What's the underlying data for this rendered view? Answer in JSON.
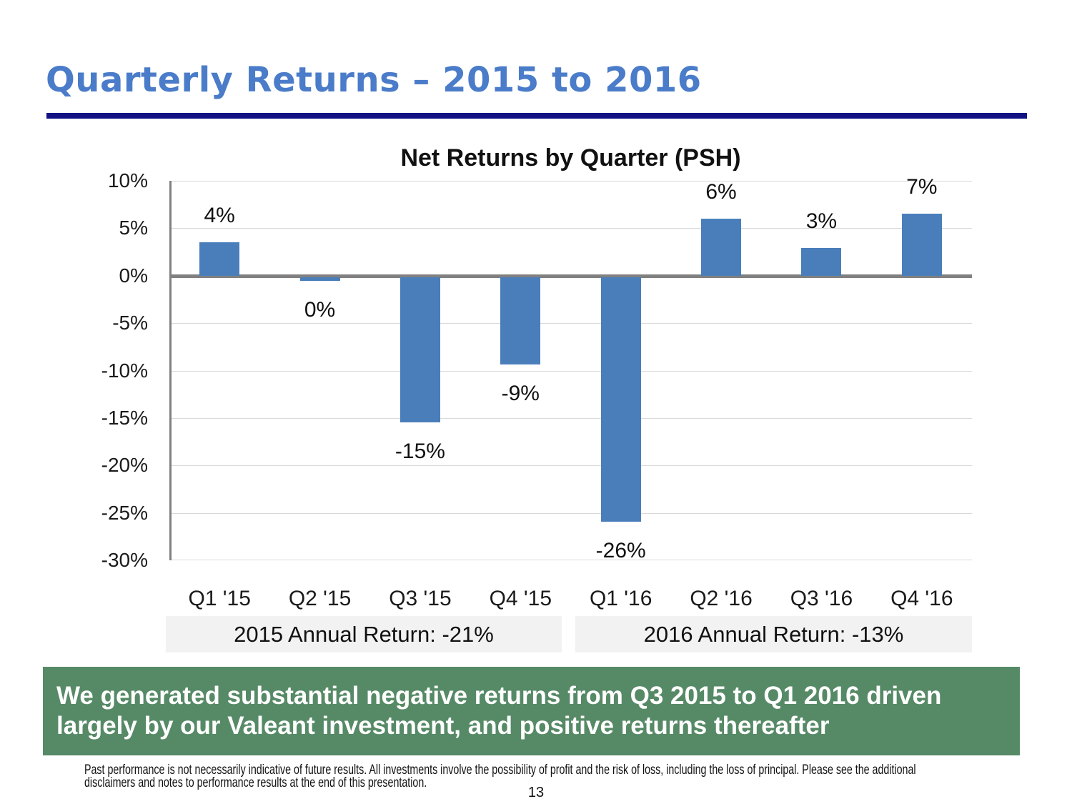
{
  "slide": {
    "title": "Quarterly Returns – 2015 to 2016",
    "annual_returns": [
      {
        "label": "2015 Annual Return: -21%"
      },
      {
        "label": "2016 Annual Return: -13%"
      }
    ],
    "banner": {
      "lines": [
        "We generated substantial negative returns from Q3 2015 to Q1 2016 driven",
        "largely by our Valeant investment, and positive returns thereafter"
      ],
      "bg_color": "#568A66",
      "text_color": "#FFFFFF"
    },
    "disclaimer_lines": [
      "Past performance is not necessarily indicative of future results. All investments involve the possibility of profit and the risk of loss, including the loss of principal. Please see the additional",
      "disclaimers and notes to performance results at the end of this presentation."
    ],
    "page_number": "13",
    "accent_colors": {
      "title_blue": "#4A7CC9",
      "divider_navy": "#131384"
    }
  },
  "chart_data": {
    "type": "bar",
    "title": "Net Returns by Quarter (PSH)",
    "categories": [
      "Q1 '15",
      "Q2 '15",
      "Q3 '15",
      "Q4 '15",
      "Q1 '16",
      "Q2 '16",
      "Q3 '16",
      "Q4 '16"
    ],
    "values": [
      4,
      0,
      -15,
      -9,
      -26,
      6,
      3,
      7
    ],
    "plotted_values": [
      3.5,
      -0.4,
      -15.3,
      -9.2,
      -25.8,
      6.0,
      2.9,
      6.5
    ],
    "data_labels": [
      "4%",
      "0%",
      "-15%",
      "-9%",
      "-26%",
      "6%",
      "3%",
      "7%"
    ],
    "y_tick_labels": [
      "10%",
      "5%",
      "0%",
      "-5%",
      "-10%",
      "-15%",
      "-20%",
      "-25%",
      "-30%"
    ],
    "ylim": [
      -30,
      10
    ],
    "y_tick_step": 5,
    "grid": true,
    "legend": "none",
    "bar_color": "#4A7EBB",
    "zero_axis_color": "#808080",
    "gridline_color": "#D9D9D9",
    "annual_box_bg": "#F2F2F2"
  }
}
